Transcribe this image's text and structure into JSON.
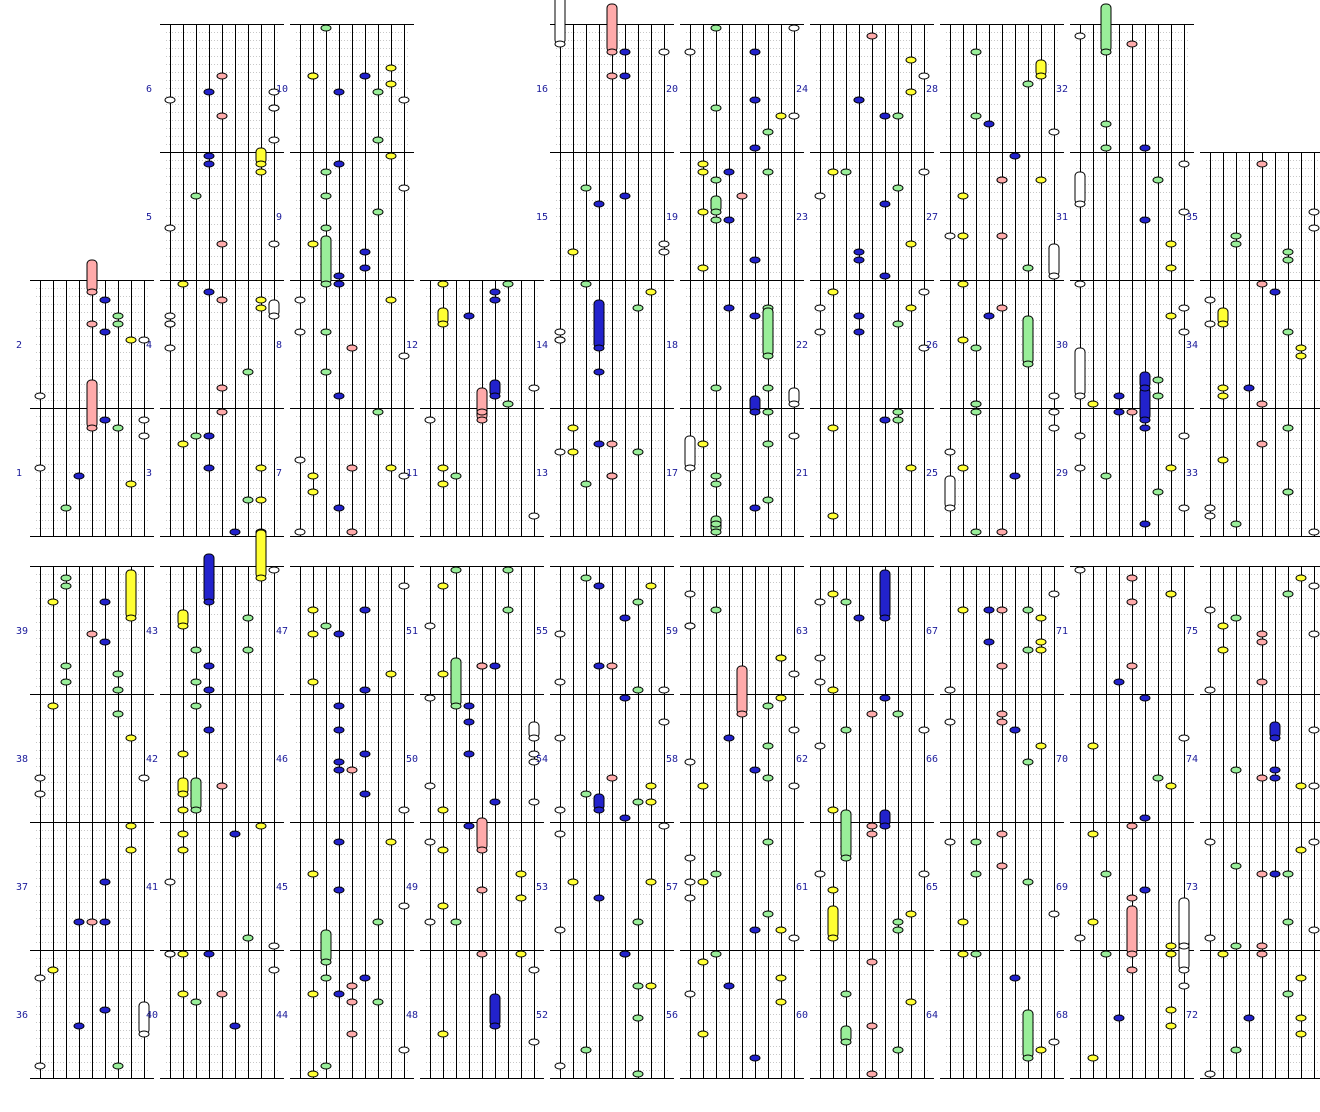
{
  "colors": {
    "yellow": "#ffff33",
    "green": "#99ee99",
    "blue": "#2222cc",
    "pink": "#ffaaaa",
    "lightblue": "#99ccee",
    "white": "#ffffff",
    "line": "#000000",
    "grid": "#c8c8c8",
    "label": "#1a1a9a"
  },
  "lanes": [
    "white",
    "yellow",
    "green",
    "blue",
    "pink",
    "blue",
    "green",
    "yellow",
    "white"
  ],
  "measures": [
    {
      "n": "1",
      "top": [
        [
          2,
          0.4
        ],
        [
          1,
          0.5
        ],
        [
          4,
          0.6
        ],
        [
          3,
          0.7
        ],
        [
          5,
          0.5
        ],
        [
          6,
          0.8
        ],
        [
          8,
          0.85
        ]
      ],
      "holds": []
    },
    {
      "n": "2",
      "top": [
        [
          6,
          0.0
        ],
        [
          7,
          0.3
        ],
        [
          1,
          0.3
        ],
        [
          8,
          0.5
        ],
        [
          5,
          0.85
        ]
      ],
      "holds": [
        [
          2,
          0.0,
          0.5
        ]
      ]
    },
    {
      "n": "3",
      "top": [
        [
          1,
          0.1
        ],
        [
          2,
          0.2
        ],
        [
          3,
          0.35
        ],
        [
          4,
          0.6
        ],
        [
          7,
          0.3
        ],
        [
          6,
          0.7
        ],
        [
          0,
          0.75
        ],
        [
          1,
          0.88
        ]
      ],
      "holds": []
    },
    {
      "n": "4",
      "top": [
        [
          2,
          0.25
        ],
        [
          3,
          0.35
        ],
        [
          4,
          0.55
        ],
        [
          7,
          0.5
        ],
        [
          6,
          0.75
        ],
        [
          2,
          0.85
        ]
      ],
      "holds": []
    },
    {
      "n": "5",
      "top": [],
      "holds": [
        [
          2,
          0.1,
          0.4
        ],
        [
          3,
          0.3,
          0.6
        ],
        [
          6,
          0.1,
          0.4
        ],
        [
          7,
          0.3,
          0.6
        ],
        [
          1,
          0.6,
          0.85
        ],
        [
          5,
          0.6,
          0.85
        ],
        [
          2,
          0.8,
          1.0
        ],
        [
          6,
          0.8,
          1.0
        ]
      ]
    },
    {
      "n": "6",
      "top": [
        [
          1,
          0.2
        ],
        [
          3,
          0.15
        ],
        [
          5,
          0.1
        ],
        [
          7,
          0.05
        ],
        [
          2,
          0.4
        ],
        [
          4,
          0.35
        ],
        [
          6,
          0.3
        ],
        [
          0,
          0.5
        ],
        [
          3,
          0.6
        ],
        [
          5,
          0.55
        ]
      ],
      "holds": [
        [
          1,
          0.8,
          1.0
        ],
        [
          5,
          0.8,
          1.0
        ]
      ]
    }
  ]
}
